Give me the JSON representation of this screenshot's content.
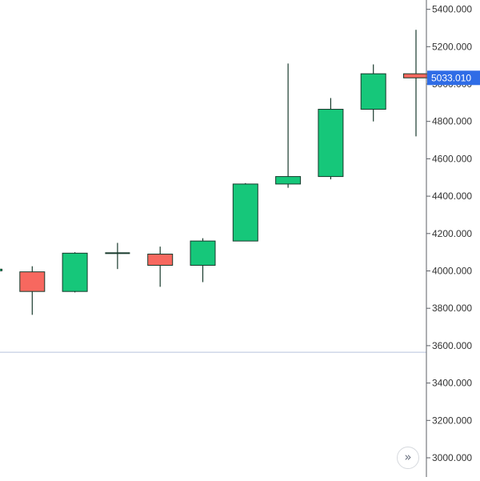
{
  "chart_data": {
    "type": "candlestick",
    "y_axis_labels": [
      "3000.000",
      "3200.000",
      "3400.000",
      "3600.000",
      "3800.000",
      "4000.000",
      "4200.000",
      "4400.000",
      "4600.000",
      "4800.000",
      "5000.000",
      "5200.000",
      "5400.000"
    ],
    "ylim": [
      2900,
      5480
    ],
    "grid": false,
    "reference_line": 3565,
    "last_price_label": "5033.010",
    "candles": [
      {
        "open": 4000,
        "high": 4020,
        "low": 3990,
        "close": 4005
      },
      {
        "open": 3995,
        "high": 4025,
        "low": 3765,
        "close": 3890
      },
      {
        "open": 3890,
        "high": 4100,
        "low": 3885,
        "close": 4095
      },
      {
        "open": 4095,
        "high": 4150,
        "low": 4010,
        "close": 4095
      },
      {
        "open": 4090,
        "high": 4130,
        "low": 3915,
        "close": 4030
      },
      {
        "open": 4030,
        "high": 4175,
        "low": 3940,
        "close": 4160
      },
      {
        "open": 4160,
        "high": 4470,
        "low": 4160,
        "close": 4465
      },
      {
        "open": 4465,
        "high": 5110,
        "low": 4445,
        "close": 4505
      },
      {
        "open": 4505,
        "high": 4925,
        "low": 4490,
        "close": 4865
      },
      {
        "open": 4865,
        "high": 5105,
        "low": 4800,
        "close": 5055
      },
      {
        "open": 5055,
        "high": 5290,
        "low": 4720,
        "close": 5033.01
      }
    ]
  },
  "colors": {
    "up": "#16c77a",
    "down": "#f7685f",
    "wick": "#183a2c",
    "axis_line": "#5c5f66",
    "axis_text": "#333333",
    "reference_line": "#b7c2dc",
    "price_label_bg": "#2f6ce6",
    "price_label_text": "#ffffff"
  },
  "controls": {
    "scroll_icon": "double-chevron-right-icon"
  }
}
